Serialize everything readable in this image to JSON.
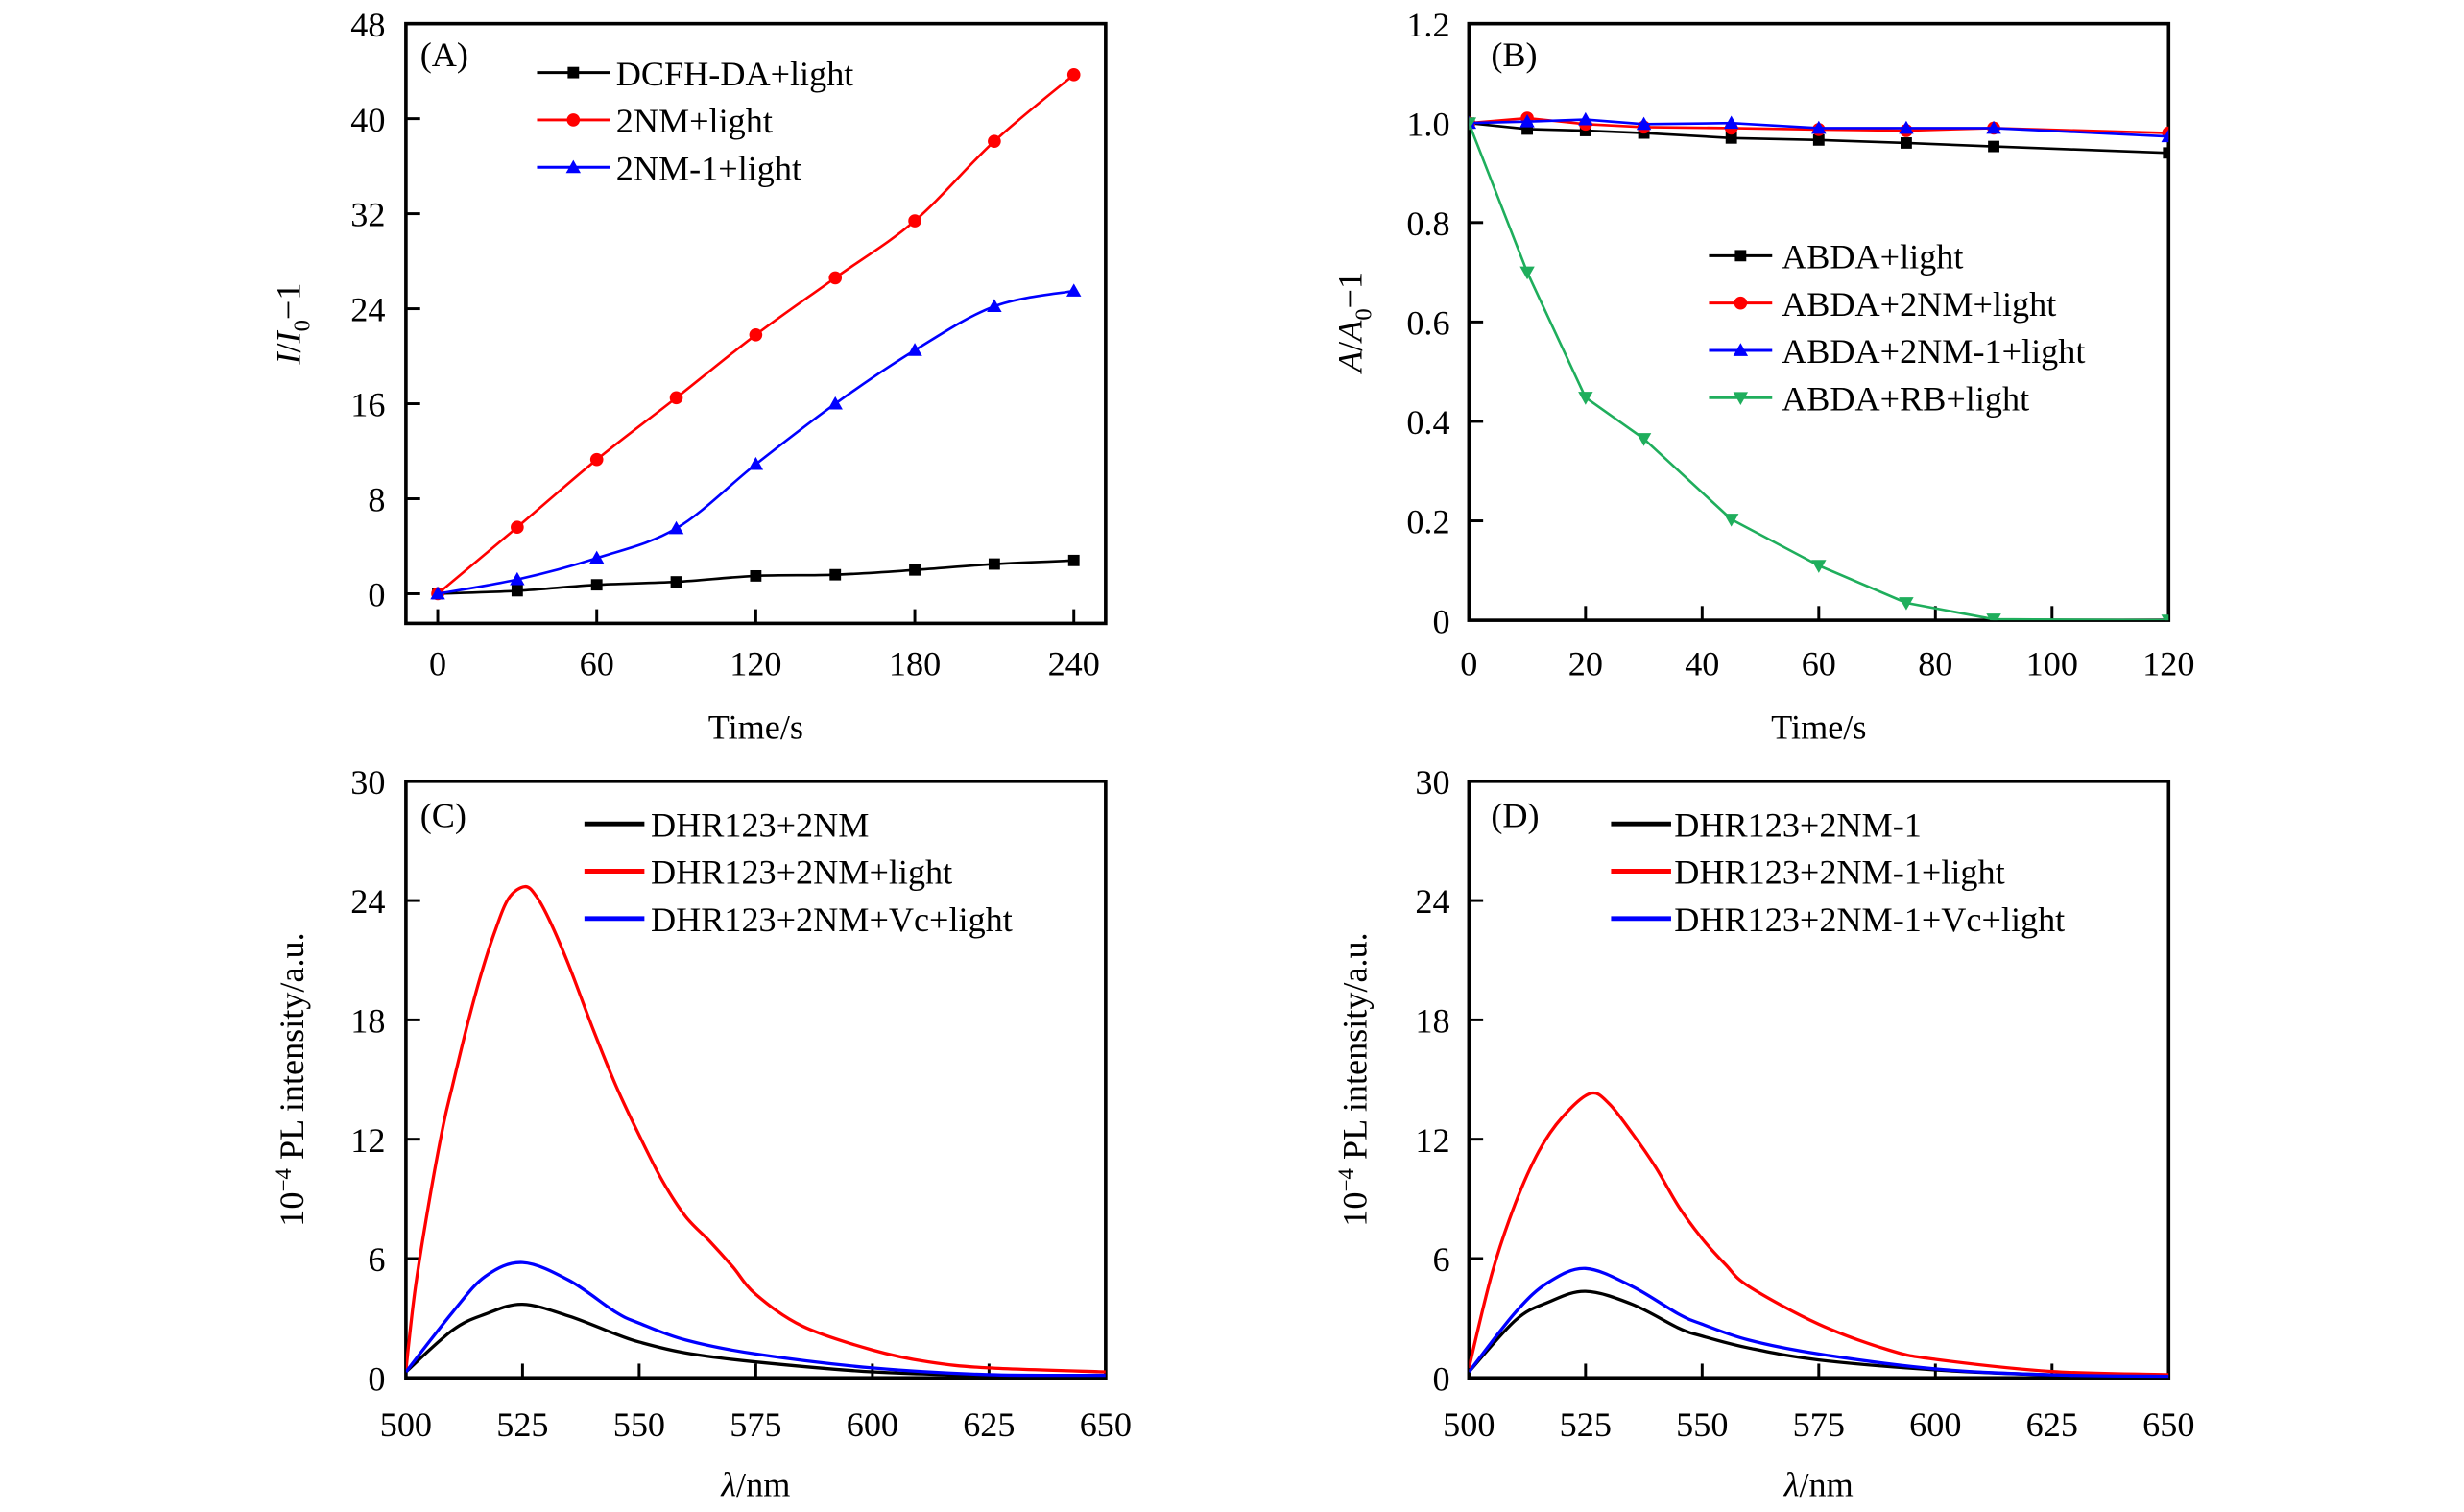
{
  "chart_data": [
    {
      "id": "A",
      "type": "line",
      "panel_label": "(A)",
      "xlabel": "Time/s",
      "ylabel": "I/I0−1",
      "ylabel_parts": {
        "main": "I",
        "sep": "/",
        "main2": "I",
        "sub": "0",
        "tail": "−1"
      },
      "xlim": [
        -12,
        252
      ],
      "ylim": [
        -2.5,
        48
      ],
      "xticks": [
        0,
        60,
        120,
        180,
        240
      ],
      "yticks": [
        0,
        8,
        16,
        24,
        32,
        40,
        48
      ],
      "legend_position": "top-center",
      "grid": false,
      "x": [
        0,
        30,
        60,
        90,
        120,
        150,
        180,
        210,
        240
      ],
      "series": [
        {
          "name": "DCFH-DA+light",
          "color": "#000000",
          "marker": "square",
          "smooth": true,
          "values": [
            0,
            0.25,
            0.75,
            1.0,
            1.5,
            1.6,
            2.0,
            2.5,
            2.8
          ]
        },
        {
          "name": "2NM+light",
          "color": "#ff0000",
          "marker": "circle",
          "smooth": true,
          "values": [
            0,
            5.6,
            11.3,
            16.5,
            21.8,
            26.6,
            31.4,
            38.1,
            43.7
          ]
        },
        {
          "name": "2NM-1+light",
          "color": "#0000ff",
          "marker": "triangle-up",
          "smooth": true,
          "values": [
            0,
            1.2,
            3.0,
            5.5,
            10.9,
            16.0,
            20.5,
            24.2,
            25.5
          ]
        }
      ]
    },
    {
      "id": "B",
      "type": "line",
      "panel_label": "(B)",
      "xlabel": "Time/s",
      "ylabel": "A/A0−1",
      "ylabel_parts": {
        "main": "A",
        "sep": "/",
        "main2": "A",
        "sub": "0",
        "tail": "−1"
      },
      "xlim": [
        0,
        120
      ],
      "ylim": [
        0,
        1.2
      ],
      "xticks": [
        0,
        20,
        40,
        60,
        80,
        100,
        120
      ],
      "yticks": [
        0,
        0.2,
        0.4,
        0.6,
        0.8,
        1.0,
        1.2
      ],
      "ytick_labels": [
        "0",
        "0.2",
        "0.4",
        "0.6",
        "0.8",
        "1.0",
        "1.2"
      ],
      "legend_position": "center-right",
      "grid": false,
      "x": [
        0,
        10,
        20,
        30,
        45,
        60,
        75,
        90,
        120
      ],
      "series": [
        {
          "name": "ABDA+light",
          "color": "#000000",
          "marker": "square",
          "smooth": false,
          "values": [
            1.0,
            0.988,
            0.985,
            0.98,
            0.97,
            0.966,
            0.96,
            0.953,
            0.94
          ]
        },
        {
          "name": "ABDA+2NM+light",
          "color": "#ff0000",
          "marker": "circle",
          "smooth": false,
          "values": [
            1.0,
            1.01,
            0.998,
            0.992,
            0.99,
            0.987,
            0.985,
            0.99,
            0.98
          ]
        },
        {
          "name": "ABDA+2NM-1+light",
          "color": "#0000ff",
          "marker": "triangle-up",
          "smooth": false,
          "values": [
            1.0,
            1.003,
            1.007,
            0.998,
            1.0,
            0.99,
            0.99,
            0.99,
            0.973
          ]
        },
        {
          "name": "ABDA+RB+light",
          "color": "#1fae5c",
          "marker": "triangle-down",
          "smooth": false,
          "values": [
            1.0,
            0.7,
            0.448,
            0.365,
            0.203,
            0.11,
            0.035,
            0.002,
            0.0
          ]
        }
      ]
    },
    {
      "id": "C",
      "type": "line",
      "panel_label": "(C)",
      "xlabel": "λ/nm",
      "ylabel": "10⁻⁴ PL intensity/a.u.",
      "xlim": [
        500,
        650
      ],
      "ylim": [
        0,
        30
      ],
      "xticks": [
        500,
        525,
        550,
        575,
        600,
        625,
        650
      ],
      "yticks": [
        0,
        6,
        12,
        18,
        24,
        30
      ],
      "legend_position": "top-right",
      "grid": false,
      "series": [
        {
          "name": "DHR123+2NM",
          "color": "#000000",
          "smooth": true,
          "x": [
            500,
            510,
            517,
            525,
            535,
            545,
            550,
            560,
            575,
            600,
            625,
            650
          ],
          "values": [
            0.3,
            2.4,
            3.2,
            3.7,
            3.1,
            2.2,
            1.8,
            1.25,
            0.8,
            0.3,
            0.12,
            0.1
          ]
        },
        {
          "name": "DHR123+2NM+light",
          "color": "#ff0000",
          "smooth": true,
          "x": [
            500,
            502,
            505,
            508,
            510,
            513,
            516,
            519,
            522,
            525.5,
            528,
            531,
            535,
            540,
            545,
            550,
            555,
            560,
            565,
            570,
            575,
            585,
            600,
            612,
            625,
            650
          ],
          "values": [
            0.4,
            4.5,
            8.9,
            12.7,
            14.7,
            17.6,
            20.2,
            22.4,
            24.1,
            24.7,
            24.2,
            22.9,
            20.7,
            17.6,
            14.7,
            12.2,
            9.9,
            8.1,
            6.9,
            5.6,
            4.2,
            2.6,
            1.4,
            0.8,
            0.5,
            0.3
          ]
        },
        {
          "name": "DHR123+2NM+Vc+light",
          "color": "#0000ff",
          "smooth": true,
          "x": [
            500,
            510,
            517,
            525,
            535,
            545,
            550,
            560,
            575,
            600,
            625,
            650
          ],
          "values": [
            0.3,
            3.3,
            5.1,
            5.8,
            4.9,
            3.3,
            2.75,
            1.9,
            1.2,
            0.5,
            0.16,
            0.13
          ]
        }
      ]
    },
    {
      "id": "D",
      "type": "line",
      "panel_label": "(D)",
      "xlabel": "λ/nm",
      "ylabel": "10⁻⁴ PL intensity/a.u.",
      "xlim": [
        500,
        650
      ],
      "ylim": [
        0,
        30
      ],
      "xticks": [
        500,
        525,
        550,
        575,
        600,
        625,
        650
      ],
      "yticks": [
        0,
        6,
        12,
        18,
        24,
        30
      ],
      "legend_position": "top-right",
      "grid": false,
      "series": [
        {
          "name": "DHR123+2NM-1",
          "color": "#000000",
          "smooth": true,
          "x": [
            500,
            510,
            517,
            525,
            535,
            545,
            550,
            560,
            575,
            600,
            625,
            650
          ],
          "values": [
            0.3,
            2.9,
            3.8,
            4.35,
            3.7,
            2.5,
            2.1,
            1.5,
            0.9,
            0.4,
            0.15,
            0.08
          ]
        },
        {
          "name": "DHR123+2NM-1+light",
          "color": "#ff0000",
          "smooth": true,
          "x": [
            500,
            505,
            510,
            515,
            520,
            526,
            530,
            535,
            540,
            545,
            550,
            555,
            560,
            575,
            590,
            600,
            625,
            650
          ],
          "values": [
            0.5,
            5.3,
            8.8,
            11.4,
            13.1,
            14.3,
            13.8,
            12.3,
            10.6,
            8.6,
            7.0,
            5.7,
            4.6,
            2.7,
            1.4,
            0.93,
            0.32,
            0.16
          ]
        },
        {
          "name": "DHR123+2NM-1+Vc+light",
          "color": "#0000ff",
          "smooth": true,
          "x": [
            500,
            510,
            517,
            525,
            535,
            545,
            550,
            560,
            575,
            600,
            625,
            650
          ],
          "values": [
            0.3,
            3.3,
            4.8,
            5.5,
            4.6,
            3.2,
            2.7,
            1.9,
            1.2,
            0.45,
            0.15,
            0.08
          ]
        }
      ]
    }
  ]
}
